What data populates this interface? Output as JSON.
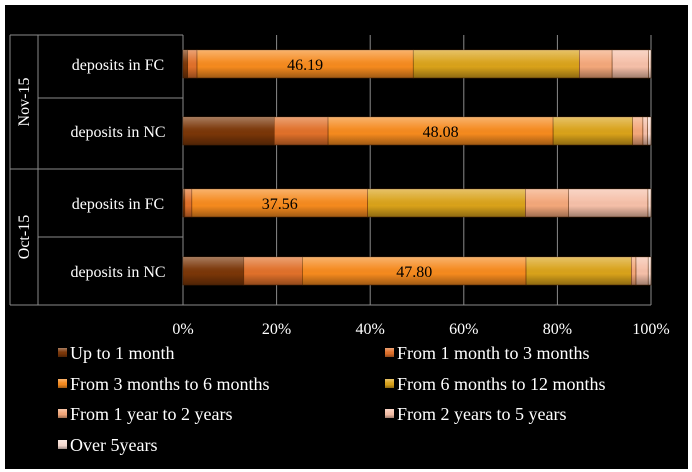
{
  "chart_data": {
    "type": "bar",
    "orientation": "horizontal",
    "stacked": "100%",
    "groups": [
      {
        "name": "Nov-15",
        "categories": [
          "deposits in FC",
          "deposits in NC"
        ]
      },
      {
        "name": "Oct-15",
        "categories": [
          "deposits in FC",
          "deposits in NC"
        ]
      }
    ],
    "rows": [
      {
        "group": "Nov-15",
        "category": "deposits in FC",
        "values": [
          1.0,
          2.0,
          46.19,
          35.5,
          7.0,
          7.8,
          0.51
        ]
      },
      {
        "group": "Nov-15",
        "category": "deposits in NC",
        "values": [
          19.5,
          11.5,
          48.08,
          17.0,
          2.2,
          1.0,
          0.72
        ]
      },
      {
        "group": "Oct-15",
        "category": "deposits in FC",
        "values": [
          0.4,
          1.5,
          37.56,
          33.7,
          9.2,
          17.0,
          0.64
        ]
      },
      {
        "group": "Oct-15",
        "category": "deposits in NC",
        "values": [
          13.0,
          12.5,
          47.8,
          22.5,
          1.0,
          2.6,
          0.6
        ]
      }
    ],
    "data_labels": [
      {
        "row": 0,
        "series": 2,
        "text": "46.19"
      },
      {
        "row": 1,
        "series": 2,
        "text": "48.08"
      },
      {
        "row": 2,
        "series": 2,
        "text": "37.56"
      },
      {
        "row": 3,
        "series": 2,
        "text": "47.80"
      }
    ],
    "series": [
      {
        "name": "Up to 1 month",
        "color": "#7a3608"
      },
      {
        "name": "From 1 month to 3 months",
        "color": "#e0702a"
      },
      {
        "name": "From 3 months to 6 months",
        "color": "#f58a1e"
      },
      {
        "name": "From 6 months to 12 months",
        "color": "#d9a21a"
      },
      {
        "name": "From 1 year to 2 years",
        "color": "#f3a77a"
      },
      {
        "name": "From 2 years to 5 years",
        "color": "#f5bfa8"
      },
      {
        "name": "Over 5years",
        "color": "#f7dcd3"
      }
    ],
    "x_ticks": [
      "0%",
      "20%",
      "40%",
      "60%",
      "80%",
      "100%"
    ],
    "xlim": [
      0,
      100
    ],
    "grid": true,
    "legend_position": "bottom"
  }
}
